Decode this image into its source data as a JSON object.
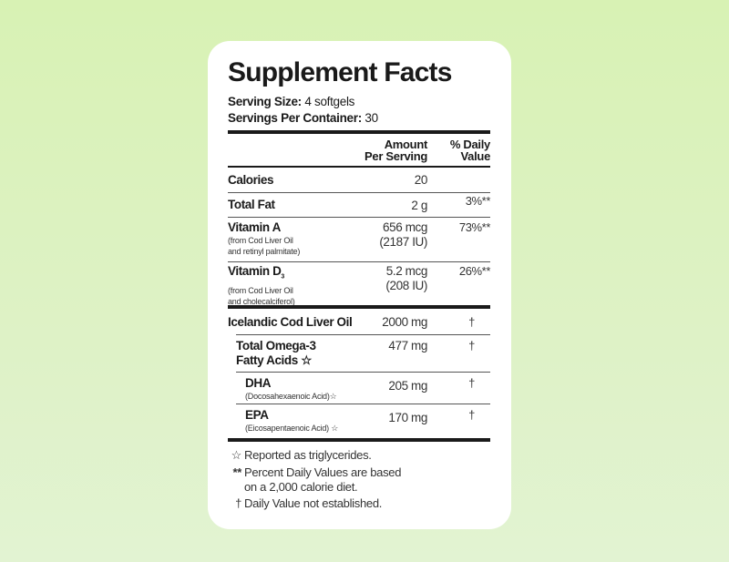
{
  "title": "Supplement Facts",
  "serving_size": {
    "label": "Serving Size:",
    "value": "4 softgels"
  },
  "servings_per_container": {
    "label": "Servings Per Container:",
    "value": "30"
  },
  "headers": {
    "amount_line1": "Amount",
    "amount_line2": "Per Serving",
    "dv_line1": "% Daily",
    "dv_line2": "Value"
  },
  "rows": [
    {
      "name": "Calories",
      "amount": "20",
      "dv": ""
    },
    {
      "name": "Total Fat",
      "amount": "2 g",
      "dv": "3%**"
    },
    {
      "name": "Vitamin A",
      "sub1": "(from Cod Liver Oil",
      "sub2": "and retinyl palmitate)",
      "amount": "656 mcg",
      "amount2": "(2187 IU)",
      "dv": "73%**"
    },
    {
      "name": "Vitamin D",
      "name_sub": "3",
      "sub1": "(from Cod Liver Oil",
      "sub2": "and cholecalciferol)",
      "amount": "5.2 mcg",
      "amount2": "(208 IU)",
      "dv": "26%**"
    },
    {
      "name": "Icelandic Cod Liver Oil",
      "amount": "2000 mg",
      "dv": "†"
    },
    {
      "name": "Total Omega-3",
      "name2": "Fatty Acids ☆",
      "amount": "477 mg",
      "dv": "†"
    },
    {
      "name": "DHA",
      "sub1": "(Docosahexaenoic Acid)☆",
      "amount": "205 mg",
      "dv": "†"
    },
    {
      "name": "EPA",
      "sub1": "(Eicosapentaenoic Acid) ☆",
      "amount": "170 mg",
      "dv": "†"
    }
  ],
  "footnotes": [
    {
      "symbol": "☆",
      "text": "Reported as triglycerides."
    },
    {
      "symbol": "**",
      "text": "Percent Daily Values are based",
      "text2": "on a 2,000 calorie diet."
    },
    {
      "symbol": "†",
      "text": "Daily Value not established."
    }
  ]
}
